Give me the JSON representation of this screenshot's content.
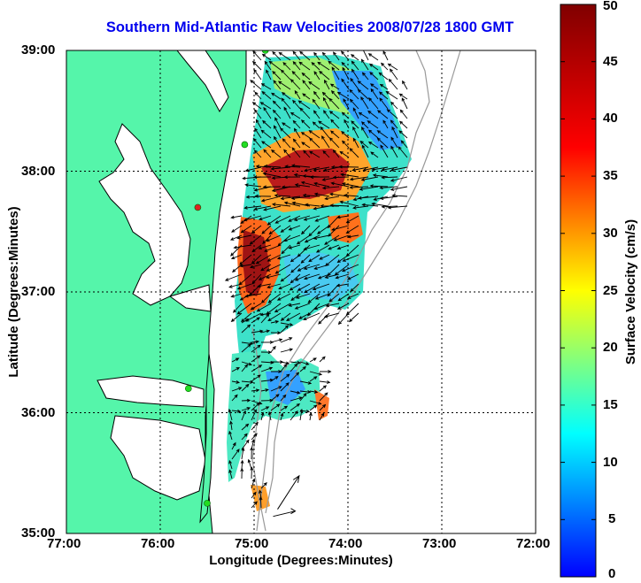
{
  "title": "Southern Mid-Atlantic Raw Velocities 2008/07/28 1800 GMT",
  "x_axis": {
    "label": "Longitude (Degrees:Minutes)",
    "ticks": [
      "77:00",
      "76:00",
      "75:00",
      "74:00",
      "73:00",
      "72:00"
    ]
  },
  "y_axis": {
    "label": "Latitude (Degrees:Minutes)",
    "ticks": [
      "39:00",
      "38:00",
      "37:00",
      "36:00",
      "35:00"
    ]
  },
  "colorbar": {
    "label": "Surface Velocity (cm/s)",
    "ticks": [
      "50",
      "45",
      "40",
      "35",
      "30",
      "25",
      "20",
      "15",
      "10",
      "5",
      "0"
    ],
    "range": [
      0,
      50
    ]
  },
  "colors": {
    "land": "#55f5aa",
    "ocean": "#ffffff",
    "coastline": "#000000",
    "bathymetry": "#999999",
    "title": "#0000ee",
    "station_active": "#22dd22",
    "station_inactive": "#dd2222"
  },
  "extent": {
    "lon": [
      -77,
      -72
    ],
    "lat": [
      35,
      39
    ]
  },
  "gridlines": "dotted",
  "stations": [
    {
      "lon": -74.88,
      "lat": 39.0,
      "status": "active"
    },
    {
      "lon": -75.1,
      "lat": 38.22,
      "status": "active"
    },
    {
      "lon": -75.6,
      "lat": 37.7,
      "status": "inactive"
    },
    {
      "lon": -75.7,
      "lat": 36.2,
      "status": "active"
    },
    {
      "lon": -75.5,
      "lat": 35.25,
      "status": "active"
    }
  ],
  "reference_vector": {
    "lon": -74.75,
    "lat": 35.2,
    "value": 50,
    "direction_deg": 40
  }
}
